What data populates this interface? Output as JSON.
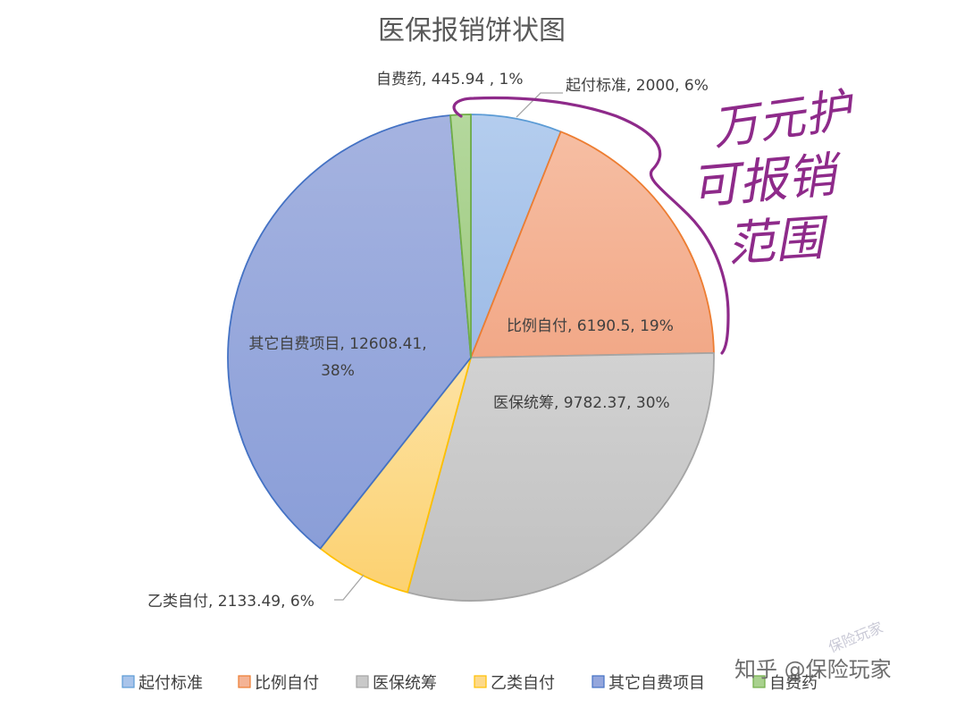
{
  "chart_data": {
    "type": "pie",
    "title": "医保报销饼状图",
    "slices": [
      {
        "name": "起付标准",
        "value": 2000,
        "value_label": "2000",
        "percent": "6%",
        "color": "#a9c4ea",
        "stroke": "#5b9bd5",
        "label": "起付标准, 2000, 6%"
      },
      {
        "name": "比例自付",
        "value": 6190.5,
        "value_label": "6190.5",
        "percent": "19%",
        "color": "#f4b395",
        "stroke": "#ed7d31",
        "label": "比例自付, 6190.5, 19%"
      },
      {
        "name": "医保统筹",
        "value": 9782.37,
        "value_label": "9782.37",
        "percent": "30%",
        "color": "#c9c9c9",
        "stroke": "#a5a5a5",
        "label": "医保统筹, 9782.37, 30%"
      },
      {
        "name": "乙类自付",
        "value": 2133.49,
        "value_label": "2133.49",
        "percent": "6%",
        "color": "#fdd98a",
        "stroke": "#ffc000",
        "label": "乙类自付, 2133.49, 6%"
      },
      {
        "name": "其它自费项目",
        "value": 12608.41,
        "value_label": "12608.41",
        "percent": "38%",
        "color": "#94a6dc",
        "stroke": "#4472c4",
        "label_line1": "其它自费项目, 12608.41,",
        "label_line2": "38%"
      },
      {
        "name": "自费药",
        "value": 445.94,
        "value_label": "445.94",
        "percent": "1%",
        "color": "#a9d18e",
        "stroke": "#70ad47",
        "label": "自费药, 445.94 , 1%"
      }
    ],
    "legend_position": "bottom"
  },
  "annotation": {
    "handwritten_line1": "万元护",
    "handwritten_line2": "可报销",
    "handwritten_line3": "范围"
  },
  "watermark": {
    "text": "知乎 @保险玩家",
    "stamp": "保险玩家"
  }
}
